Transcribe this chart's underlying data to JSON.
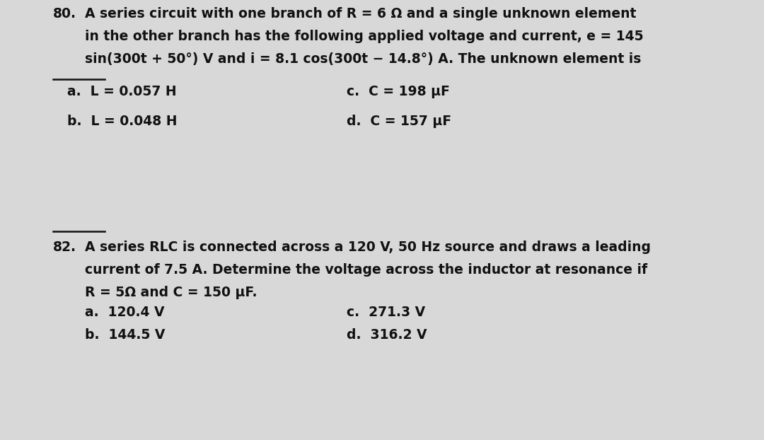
{
  "background_color": "#d8d8d8",
  "text_color": "#111111",
  "figsize": [
    10.8,
    6.22
  ],
  "dpi": 100,
  "q80": {
    "num": "80.",
    "line1": "A series circuit with one branch of R = 6 Ω and a single unknown element",
    "line2": "in the other branch has the following applied voltage and current, e = 145",
    "line3": "sin(300t + 50°) V and i = 8.1 cos(300t − 14.8°) A. The unknown element is",
    "ans_a": "a.  L = 0.057 H",
    "ans_b": "b.  L = 0.048 H",
    "ans_c": "c.  C = 198 μF",
    "ans_d": "d.  C = 157 μF"
  },
  "q82": {
    "num": "82.",
    "line1": "A series RLC is connected across a 120 V, 50 Hz source and draws a leading",
    "line2": "current of 7.5 A. Determine the voltage across the inductor at resonance if",
    "line3": "R = 5Ω and C = 150 μF.",
    "ans_a": "a.  120.4 V",
    "ans_b": "b.  144.5 V",
    "ans_c": "c.  271.3 V",
    "ans_d": "d.  316.2 V"
  },
  "font_size_body": 13.5,
  "font_size_num": 13.5
}
